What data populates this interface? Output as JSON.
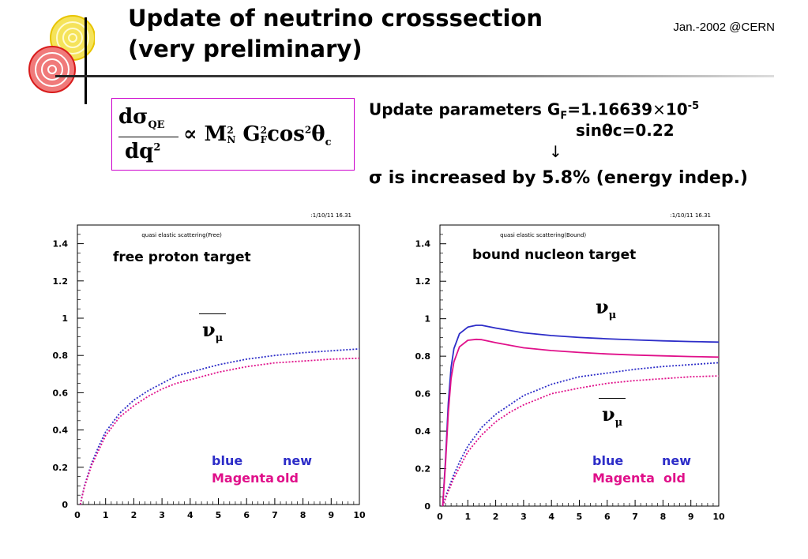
{
  "slide": {
    "title_line1": "Update of neutrino crosssection",
    "title_line2": "(very preliminary)",
    "date": "Jan.-2002 @CERN"
  },
  "formula": {
    "numerator": "dσ",
    "num_sub": "QE",
    "denominator": "dq",
    "den_sup": "2",
    "propto": "∝",
    "m": "M",
    "m_sup": "2",
    "m_sub": "N",
    "g": "G",
    "g_sup": "2",
    "g_sub": "F",
    "cos": "cos",
    "cos_sup": "2",
    "theta": "θ",
    "theta_sub": "c"
  },
  "params": {
    "line1": "Update parameters G",
    "line1_sub": "F",
    "line1_rest": "=1.16639",
    "times": "×",
    "ten": "10",
    "exp": "-5",
    "line2": "sinθc=0.22",
    "arrow": "↓",
    "line3": "σ is increased by 5.8% (energy indep.)"
  },
  "legend": {
    "blue": "blue",
    "new": "new",
    "magenta": "Magenta",
    "old": "old"
  },
  "neutrino": {
    "nu": "ν",
    "mu": "μ"
  },
  "colors": {
    "new": "#2d2dc8",
    "old": "#e0108a",
    "formula_border": "#cc00cc"
  },
  "chart_data": [
    {
      "type": "line",
      "title": "quasi elastic scattering(Free)",
      "stamp": ":1/10/11   16.31",
      "annotation": "free proton target",
      "xlabel": "",
      "ylabel": "",
      "xlim": [
        0,
        10
      ],
      "ylim": [
        0,
        1.5
      ],
      "xticks": [
        "0",
        "1",
        "2",
        "3",
        "4",
        "5",
        "6",
        "7",
        "8",
        "9",
        "10"
      ],
      "yticks": [
        "0",
        "0.2",
        "0.4",
        "0.6",
        "0.8",
        "1",
        "1.2",
        "1.4"
      ],
      "series": [
        {
          "color": "#2d2dc8",
          "style": "dotted",
          "x": [
            0.1,
            0.25,
            0.5,
            0.75,
            1,
            1.5,
            2,
            2.5,
            3,
            3.5,
            4,
            5,
            6,
            7,
            8,
            9,
            10
          ],
          "y": [
            0,
            0.1,
            0.22,
            0.31,
            0.39,
            0.49,
            0.56,
            0.61,
            0.65,
            0.69,
            0.71,
            0.75,
            0.78,
            0.8,
            0.815,
            0.825,
            0.835
          ]
        },
        {
          "color": "#e0108a",
          "style": "dotted",
          "x": [
            0.1,
            0.25,
            0.5,
            0.75,
            1,
            1.5,
            2,
            2.5,
            3,
            3.5,
            4,
            5,
            6,
            7,
            8,
            9,
            10
          ],
          "y": [
            0,
            0.095,
            0.21,
            0.29,
            0.37,
            0.47,
            0.53,
            0.58,
            0.62,
            0.65,
            0.67,
            0.71,
            0.74,
            0.76,
            0.77,
            0.78,
            0.785
          ]
        }
      ]
    },
    {
      "type": "line",
      "title": "quasi elastic scattering(Bound)",
      "stamp": ":1/10/11   16.31",
      "annotation": "bound nucleon target",
      "xlabel": "",
      "ylabel": "",
      "xlim": [
        0,
        10
      ],
      "ylim": [
        0,
        1.5
      ],
      "xticks": [
        "0",
        "1",
        "2",
        "3",
        "4",
        "5",
        "6",
        "7",
        "8",
        "9",
        "10"
      ],
      "yticks": [
        "0",
        "0.2",
        "0.4",
        "0.6",
        "0.8",
        "1",
        "1.2",
        "1.4"
      ],
      "series": [
        {
          "color": "#2d2dc8",
          "style": "solid",
          "flavor": "nu",
          "x": [
            0.1,
            0.2,
            0.3,
            0.4,
            0.5,
            0.7,
            1,
            1.3,
            1.5,
            2,
            3,
            4,
            5,
            6,
            7,
            8,
            9,
            10
          ],
          "y": [
            0,
            0.25,
            0.55,
            0.74,
            0.84,
            0.92,
            0.955,
            0.965,
            0.965,
            0.95,
            0.925,
            0.91,
            0.9,
            0.893,
            0.887,
            0.882,
            0.878,
            0.875
          ]
        },
        {
          "color": "#e0108a",
          "style": "solid",
          "flavor": "nu",
          "x": [
            0.1,
            0.2,
            0.3,
            0.4,
            0.5,
            0.7,
            1,
            1.3,
            1.5,
            2,
            3,
            4,
            5,
            6,
            7,
            8,
            9,
            10
          ],
          "y": [
            0,
            0.23,
            0.5,
            0.68,
            0.77,
            0.85,
            0.885,
            0.89,
            0.888,
            0.872,
            0.845,
            0.83,
            0.82,
            0.812,
            0.806,
            0.802,
            0.798,
            0.795
          ]
        },
        {
          "color": "#2d2dc8",
          "style": "dotted",
          "flavor": "nubar",
          "x": [
            0.1,
            0.25,
            0.5,
            0.75,
            1,
            1.5,
            2,
            2.5,
            3,
            3.5,
            4,
            5,
            6,
            7,
            8,
            9,
            10
          ],
          "y": [
            0,
            0.07,
            0.17,
            0.25,
            0.32,
            0.42,
            0.49,
            0.54,
            0.59,
            0.62,
            0.65,
            0.69,
            0.71,
            0.73,
            0.745,
            0.755,
            0.765
          ]
        },
        {
          "color": "#e0108a",
          "style": "dotted",
          "flavor": "nubar",
          "x": [
            0.1,
            0.25,
            0.5,
            0.75,
            1,
            1.5,
            2,
            2.5,
            3,
            3.5,
            4,
            5,
            6,
            7,
            8,
            9,
            10
          ],
          "y": [
            0,
            0.06,
            0.15,
            0.22,
            0.29,
            0.38,
            0.45,
            0.5,
            0.54,
            0.57,
            0.6,
            0.63,
            0.655,
            0.67,
            0.68,
            0.69,
            0.695
          ]
        }
      ]
    }
  ]
}
